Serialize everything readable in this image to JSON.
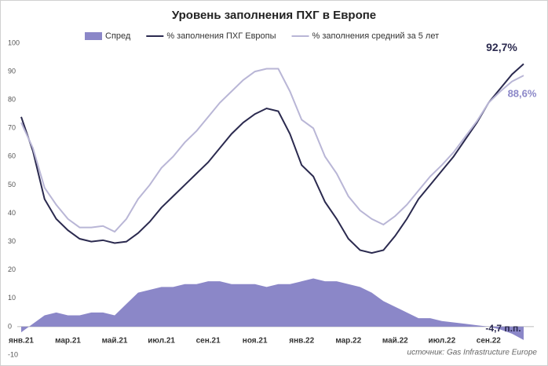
{
  "chart_data": {
    "type": "line",
    "title": "Уровень заполнения ПХГ в Европе",
    "source": "источник: Gas Infrastructure Europe",
    "categories": [
      "янв.21",
      null,
      null,
      null,
      "мар.21",
      null,
      null,
      null,
      "май.21",
      null,
      null,
      null,
      "июл.21",
      null,
      null,
      null,
      "сен.21",
      null,
      null,
      null,
      "ноя.21",
      null,
      null,
      null,
      "янв.22",
      null,
      null,
      null,
      "мар.22",
      null,
      null,
      null,
      "май.22",
      null,
      null,
      null,
      "июл.22",
      null,
      null,
      null,
      "сен.22",
      null,
      null,
      null
    ],
    "series": [
      {
        "name": "Спред",
        "type": "area",
        "color": "#8b87c8",
        "values": [
          -2,
          1,
          4,
          5,
          4,
          4,
          5,
          5,
          4,
          8,
          12,
          13,
          14,
          14,
          15,
          15,
          16,
          16,
          15,
          15,
          15,
          14,
          15,
          15,
          16,
          17,
          16,
          16,
          15,
          14,
          12,
          9,
          7,
          5,
          3,
          3,
          2,
          1.5,
          1,
          0.5,
          0,
          -1,
          -2.5,
          -4.7
        ]
      },
      {
        "name": "% заполнения ПХГ Европы",
        "type": "line",
        "color": "#2b2a4f",
        "values": [
          74,
          62,
          45,
          38,
          34,
          31,
          30,
          30.5,
          29.5,
          30,
          33,
          37,
          42,
          46,
          50,
          54,
          58,
          63,
          68,
          72,
          75,
          77,
          76,
          68,
          57,
          53,
          44,
          38,
          31,
          27,
          26,
          27,
          32,
          38,
          45,
          50,
          55,
          60,
          66,
          72,
          79,
          84,
          89,
          92.7
        ]
      },
      {
        "name": "% заполнения средний за 5 лет",
        "type": "line",
        "color": "#b9b6d6",
        "values": [
          72,
          63,
          49,
          43,
          38,
          35,
          35,
          35.5,
          33.5,
          38,
          45,
          50,
          56,
          60,
          65,
          69,
          74,
          79,
          83,
          87,
          90,
          91,
          91,
          83,
          73,
          70,
          60,
          54,
          46,
          41,
          38,
          36,
          39,
          43,
          48,
          53,
          57,
          61.5,
          67,
          72.5,
          79,
          83,
          86.5,
          88.6
        ]
      }
    ],
    "annotations": [
      {
        "text": "92,7%",
        "series": 1
      },
      {
        "text": "88,6%",
        "series": 2
      },
      {
        "text": "-4,7 п.п.",
        "series": 0
      }
    ],
    "ylim": [
      -10,
      100
    ],
    "yticks": [
      -10,
      0,
      10,
      20,
      30,
      40,
      50,
      60,
      70,
      80,
      90,
      100
    ],
    "legend": "top"
  }
}
